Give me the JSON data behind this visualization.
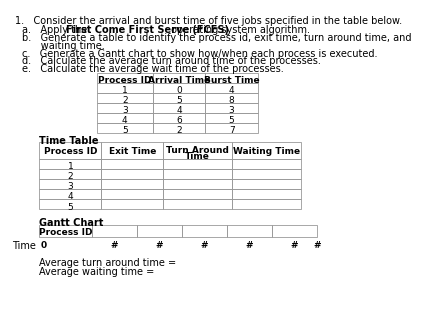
{
  "title": "1.   Consider the arrival and burst time of five jobs specified in the table below.",
  "bullet_a_pre": "a.   Apply the ",
  "bullet_a_bold": "First Come First Serve (FCFS)",
  "bullet_a_post": " operating system algorithm.",
  "bullet_b": "b.   Generate a table to identify the process id, exit time, turn around time, and",
  "bullet_b2": "      waiting time.",
  "bullet_c": "c.   Generate a Gantt chart to show how/when each process is executed.",
  "bullet_d": "d.   Calculate the average turn around time of the processes.",
  "bullet_e": "e.   Calculate the average wait time of the processes.",
  "input_table_headers": [
    "Process ID",
    "Arrival Time",
    "Burst Time"
  ],
  "input_table_data": [
    [
      "1",
      "0",
      "4"
    ],
    [
      "2",
      "5",
      "8"
    ],
    [
      "3",
      "4",
      "3"
    ],
    [
      "4",
      "6",
      "5"
    ],
    [
      "5",
      "2",
      "7"
    ]
  ],
  "time_table_label": "Time Table",
  "time_table_headers": [
    "Process ID",
    "Exit Time",
    "Turn Around\nTime",
    "Waiting Time"
  ],
  "time_table_rows": [
    "1",
    "2",
    "3",
    "4",
    "5"
  ],
  "gantt_label": "Gantt Chart",
  "gantt_col_header": "Process ID",
  "gantt_time_label": "Time",
  "gantt_time_tick": "0",
  "gantt_hash": "#",
  "avg_tat_label": "Average turn around time =",
  "avg_wt_label": "Average waiting time =",
  "bg_color": "#ffffff",
  "table_line_color": "#999999",
  "text_color": "#000000",
  "header_bold_color": "#cc3300"
}
